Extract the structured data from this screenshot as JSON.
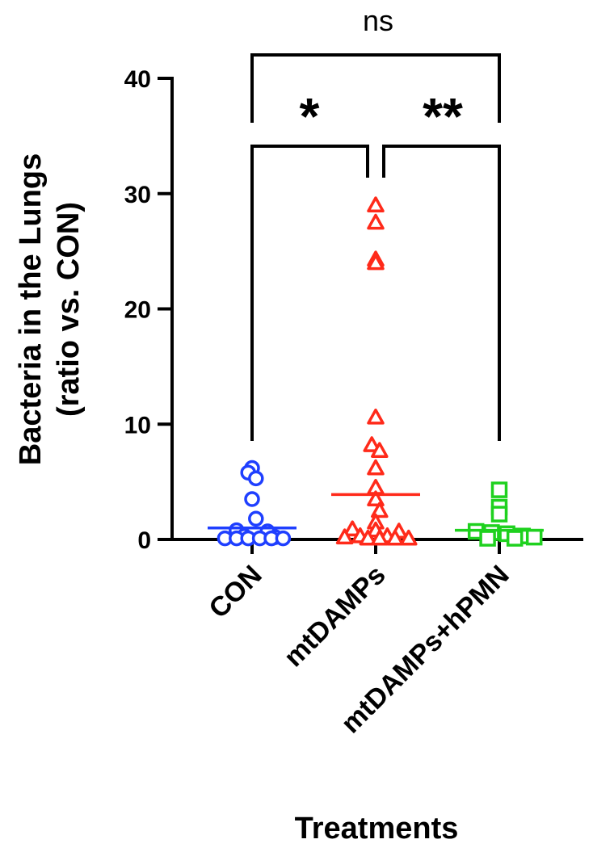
{
  "chart_data": {
    "type": "scatter",
    "xlabel": "Treatments",
    "ylabel_line1": "Bacteria in the Lungs",
    "ylabel_line2": "(ratio vs. CON)",
    "ylim": [
      0,
      40
    ],
    "yticks": [
      "0",
      "10",
      "20",
      "30",
      "40"
    ],
    "categories": [
      "CON",
      "mtDAMPs",
      "mtDAMPs+hPMN"
    ],
    "series": [
      {
        "category": "CON",
        "marker": "circle",
        "color": "#1f3fff",
        "mean": 1.0,
        "points": [
          {
            "value": 6.2,
            "offset": 0.0
          },
          {
            "value": 5.8,
            "offset": -0.1
          },
          {
            "value": 5.3,
            "offset": 0.1
          },
          {
            "value": 3.5,
            "offset": 0.0
          },
          {
            "value": 1.8,
            "offset": 0.1
          },
          {
            "value": 0.8,
            "offset": -0.4
          },
          {
            "value": 0.7,
            "offset": 0.4
          },
          {
            "value": 0.3,
            "offset": -0.2
          },
          {
            "value": 0.2,
            "offset": 0.6
          },
          {
            "value": 0.1,
            "offset": -0.7
          },
          {
            "value": 0.1,
            "offset": -0.4
          },
          {
            "value": 0.1,
            "offset": -0.1
          },
          {
            "value": 0.1,
            "offset": 0.2
          },
          {
            "value": 0.1,
            "offset": 0.5
          },
          {
            "value": 0.1,
            "offset": 0.8
          }
        ]
      },
      {
        "category": "mtDAMPs",
        "marker": "triangle",
        "color": "#ff2a1a",
        "mean": 3.9,
        "points": [
          {
            "value": 29.0,
            "offset": 0.0
          },
          {
            "value": 27.5,
            "offset": 0.0
          },
          {
            "value": 24.3,
            "offset": 0.0
          },
          {
            "value": 24.0,
            "offset": 0.0
          },
          {
            "value": 10.6,
            "offset": 0.0
          },
          {
            "value": 8.2,
            "offset": -0.1
          },
          {
            "value": 7.7,
            "offset": 0.1
          },
          {
            "value": 6.2,
            "offset": 0.0
          },
          {
            "value": 4.5,
            "offset": 0.0
          },
          {
            "value": 3.5,
            "offset": 0.0
          },
          {
            "value": 2.5,
            "offset": 0.1
          },
          {
            "value": 1.5,
            "offset": 0.0
          },
          {
            "value": 0.9,
            "offset": -0.6
          },
          {
            "value": 0.8,
            "offset": 0.0
          },
          {
            "value": 0.7,
            "offset": 0.6
          },
          {
            "value": 0.3,
            "offset": -0.4
          },
          {
            "value": 0.3,
            "offset": 0.3
          },
          {
            "value": 0.2,
            "offset": -0.8
          },
          {
            "value": 0.1,
            "offset": -0.2
          },
          {
            "value": 0.1,
            "offset": 0.1
          },
          {
            "value": 0.1,
            "offset": 0.5
          },
          {
            "value": 0.1,
            "offset": 0.85
          }
        ]
      },
      {
        "category": "mtDAMPs+hPMN",
        "marker": "square",
        "color": "#1fd11f",
        "mean": 0.8,
        "points": [
          {
            "value": 4.3,
            "offset": 0.0
          },
          {
            "value": 2.8,
            "offset": 0.0
          },
          {
            "value": 2.2,
            "offset": 0.0
          },
          {
            "value": 0.7,
            "offset": -0.6
          },
          {
            "value": 0.6,
            "offset": -0.2
          },
          {
            "value": 0.5,
            "offset": 0.2
          },
          {
            "value": 0.3,
            "offset": 0.6
          },
          {
            "value": 0.2,
            "offset": 0.9
          },
          {
            "value": 0.1,
            "offset": -0.3
          },
          {
            "value": 0.1,
            "offset": 0.4
          }
        ]
      }
    ],
    "comparisons": [
      {
        "from": "CON",
        "to": "mtDAMPs+hPMN",
        "y": 40,
        "label": "ns"
      },
      {
        "from": "CON",
        "to": "mtDAMPs",
        "y": 34.5,
        "label": "*"
      },
      {
        "from": "mtDAMPs",
        "to": "mtDAMPs+hPMN",
        "y": 34.5,
        "label": "**"
      }
    ]
  }
}
